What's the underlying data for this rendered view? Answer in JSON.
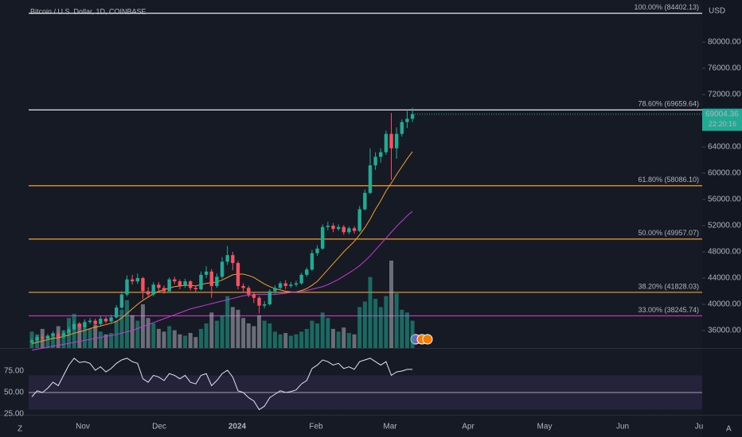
{
  "chart_data": {
    "type": "candlestick",
    "title": "Bitcoin / U.S. Dollar, 1D, COINBASE",
    "currency": "USD",
    "countdown": "22:20:16",
    "up_color": "#22ab94",
    "down_color": "#f7525f",
    "ylim": [
      33333,
      86424
    ],
    "yticks": [
      {
        "value": 80000,
        "label": "80000.00"
      },
      {
        "value": 76000,
        "label": "76000.00"
      },
      {
        "value": 72000,
        "label": "72000.00"
      },
      {
        "value": 64000,
        "label": "64000.00"
      },
      {
        "value": 60000,
        "label": "60000.00"
      },
      {
        "value": 56000,
        "label": "56000.00"
      },
      {
        "value": 52000,
        "label": "52000.00"
      },
      {
        "value": 48000,
        "label": "48000.00"
      },
      {
        "value": 44000,
        "label": "44000.00"
      },
      {
        "value": 40000,
        "label": "40000.00"
      },
      {
        "value": 36000,
        "label": "36000.00"
      }
    ],
    "xlabels": [
      "Nov",
      "Dec",
      "2024",
      "Feb",
      "Mar",
      "Apr",
      "May",
      "Jun",
      "Ju"
    ],
    "fib": [
      {
        "label": "100.00% (84402.13)",
        "value": 84402.13,
        "color": "#ffffff"
      },
      {
        "label": "78.60% (69659.64)",
        "value": 69659.64,
        "color": "#ffffff"
      },
      {
        "label": "61.80% (58086.10)",
        "value": 58086.1,
        "color": "#f5a02a"
      },
      {
        "label": "50.00% (49957.07)",
        "value": 49957.07,
        "color": "#f5a02a"
      },
      {
        "label": "38.20% (41828.03)",
        "value": 41828.03,
        "color": "#f5a02a"
      },
      {
        "label": "33.00% (38245.74)",
        "value": 38245.74,
        "color": "#b33bb3"
      }
    ],
    "ohlc": [
      [
        34200,
        34800,
        33900,
        34500
      ],
      [
        34500,
        35300,
        34200,
        35000
      ],
      [
        35000,
        35400,
        34500,
        34800
      ],
      [
        34800,
        35500,
        34500,
        35200
      ],
      [
        35200,
        35900,
        34900,
        35500
      ],
      [
        35500,
        35800,
        34700,
        35000
      ],
      [
        35000,
        36000,
        34800,
        35600
      ],
      [
        35600,
        36600,
        35400,
        36200
      ],
      [
        36200,
        37500,
        36000,
        37000
      ],
      [
        37000,
        37300,
        36100,
        36500
      ],
      [
        36500,
        37700,
        36200,
        37300
      ],
      [
        37300,
        37900,
        37000,
        37500
      ],
      [
        37500,
        37800,
        36600,
        37000
      ],
      [
        37000,
        38200,
        36800,
        37800
      ],
      [
        37800,
        38100,
        37100,
        37400
      ],
      [
        37400,
        38400,
        37200,
        38000
      ],
      [
        38000,
        39900,
        37800,
        39500
      ],
      [
        39500,
        42000,
        39300,
        41500
      ],
      [
        41500,
        44400,
        41200,
        43800
      ],
      [
        43800,
        44500,
        43000,
        43500
      ],
      [
        43500,
        44700,
        43100,
        44000
      ],
      [
        44000,
        44200,
        40800,
        42000
      ],
      [
        42000,
        42600,
        41000,
        41500
      ],
      [
        41500,
        43400,
        41200,
        43000
      ],
      [
        43000,
        43400,
        42100,
        42500
      ],
      [
        42500,
        42900,
        41600,
        42000
      ],
      [
        42000,
        44100,
        41800,
        43800
      ],
      [
        43800,
        44200,
        43100,
        43500
      ],
      [
        43500,
        43800,
        42300,
        42800
      ],
      [
        42800,
        43900,
        42500,
        43500
      ],
      [
        43500,
        43700,
        42100,
        42500
      ],
      [
        42500,
        42900,
        41900,
        42300
      ],
      [
        42300,
        45000,
        42100,
        44500
      ],
      [
        44500,
        45800,
        44000,
        45000
      ],
      [
        45000,
        45400,
        41000,
        42800
      ],
      [
        42800,
        44700,
        42500,
        44200
      ],
      [
        44200,
        47200,
        43900,
        46500
      ],
      [
        46500,
        48900,
        46000,
        47500
      ],
      [
        47500,
        48000,
        45200,
        46300
      ],
      [
        46300,
        46600,
        42300,
        42800
      ],
      [
        42800,
        43200,
        41800,
        42500
      ],
      [
        42500,
        42800,
        41100,
        41500
      ],
      [
        41500,
        41800,
        40200,
        41000
      ],
      [
        41000,
        41300,
        38600,
        39800
      ],
      [
        39800,
        40500,
        39400,
        40000
      ],
      [
        40000,
        42300,
        39800,
        42000
      ],
      [
        42000,
        42900,
        41600,
        42500
      ],
      [
        42500,
        43500,
        42200,
        43200
      ],
      [
        43200,
        43700,
        42300,
        42800
      ],
      [
        42800,
        43400,
        42500,
        43000
      ],
      [
        43000,
        43600,
        42700,
        43200
      ],
      [
        43200,
        44800,
        43000,
        44500
      ],
      [
        44500,
        45600,
        44200,
        45300
      ],
      [
        45300,
        48300,
        45100,
        47800
      ],
      [
        47800,
        49000,
        47400,
        48500
      ],
      [
        48500,
        52200,
        48300,
        51800
      ],
      [
        51800,
        52600,
        51300,
        52000
      ],
      [
        52000,
        52400,
        51000,
        51500
      ],
      [
        51500,
        52200,
        51200,
        51800
      ],
      [
        51800,
        52100,
        50600,
        51000
      ],
      [
        51000,
        51900,
        50700,
        51600
      ],
      [
        51600,
        51900,
        50800,
        51200
      ],
      [
        51200,
        55000,
        51000,
        54500
      ],
      [
        54500,
        57500,
        54300,
        57000
      ],
      [
        57000,
        63800,
        56800,
        61200
      ],
      [
        61200,
        63200,
        60500,
        62500
      ],
      [
        62500,
        63800,
        61600,
        63200
      ],
      [
        63200,
        66500,
        62800,
        66000
      ],
      [
        66000,
        69200,
        59000,
        63800
      ],
      [
        63800,
        67000,
        62200,
        66000
      ],
      [
        66000,
        68200,
        65600,
        67800
      ],
      [
        67800,
        69500,
        66900,
        68300
      ],
      [
        68300,
        70000,
        67800,
        69004.36
      ]
    ],
    "ma_fast": {
      "color": "#f5a02a",
      "values": [
        34000,
        34200,
        34400,
        34600,
        34800,
        34900,
        35100,
        35300,
        35600,
        35800,
        36000,
        36300,
        36500,
        36700,
        36900,
        37100,
        37400,
        37900,
        38600,
        39300,
        40000,
        40600,
        41100,
        41600,
        42000,
        42200,
        42500,
        42700,
        42800,
        42900,
        42900,
        42800,
        43000,
        43200,
        43300,
        43400,
        43700,
        44100,
        44500,
        44600,
        44600,
        44400,
        44100,
        43600,
        43100,
        42700,
        42400,
        42200,
        42000,
        41900,
        41900,
        42100,
        42400,
        42900,
        43500,
        44400,
        45300,
        46200,
        47100,
        48000,
        48800,
        49600,
        50600,
        51700,
        53000,
        54500,
        55800,
        57300,
        58500,
        59800,
        61000,
        62200,
        63300
      ]
    },
    "ma_slow": {
      "color": "#c43bd6",
      "values": [
        33000,
        33150,
        33300,
        33450,
        33600,
        33750,
        33900,
        34050,
        34200,
        34350,
        34500,
        34650,
        34800,
        34950,
        35100,
        35250,
        35400,
        35600,
        35800,
        36000,
        36300,
        36600,
        36900,
        37200,
        37500,
        37800,
        38100,
        38400,
        38700,
        39000,
        39300,
        39500,
        39700,
        39900,
        40100,
        40300,
        40500,
        40700,
        40900,
        41100,
        41300,
        41400,
        41500,
        41500,
        41500,
        41500,
        41500,
        41600,
        41700,
        41800,
        41900,
        42000,
        42100,
        42300,
        42500,
        42700,
        43000,
        43400,
        43800,
        44300,
        44800,
        45300,
        45900,
        46600,
        47400,
        48300,
        49200,
        50100,
        51000,
        51900,
        52700,
        53500,
        54200
      ]
    },
    "volume": [
      12,
      10,
      14,
      9,
      11,
      16,
      13,
      22,
      25,
      18,
      15,
      14,
      17,
      12,
      10,
      11,
      20,
      28,
      35,
      24,
      20,
      32,
      22,
      18,
      14,
      12,
      16,
      13,
      10,
      9,
      11,
      8,
      14,
      18,
      26,
      20,
      24,
      38,
      30,
      28,
      22,
      18,
      16,
      24,
      20,
      18,
      12,
      10,
      11,
      9,
      10,
      12,
      14,
      20,
      18,
      26,
      22,
      14,
      12,
      15,
      11,
      10,
      30,
      34,
      52,
      36,
      30,
      38,
      64,
      40,
      28,
      26,
      20
    ],
    "rsi": {
      "color": "#e0e3eb",
      "values": [
        45,
        52,
        50,
        55,
        62,
        58,
        70,
        82,
        90,
        85,
        86,
        84,
        76,
        80,
        74,
        78,
        84,
        88,
        90,
        86,
        84,
        66,
        62,
        70,
        68,
        64,
        72,
        70,
        66,
        70,
        62,
        60,
        70,
        72,
        58,
        64,
        72,
        76,
        68,
        52,
        50,
        44,
        40,
        30,
        34,
        44,
        48,
        52,
        50,
        51,
        53,
        60,
        64,
        78,
        82,
        88,
        86,
        82,
        84,
        78,
        80,
        77,
        86,
        88,
        90,
        86,
        82,
        86,
        70,
        74,
        75,
        77,
        77
      ],
      "ylim": [
        24,
        101
      ],
      "yticks": [
        {
          "value": 75,
          "label": "75.00"
        },
        {
          "value": 50,
          "label": "50.00"
        },
        {
          "value": 25,
          "label": "25.00"
        }
      ],
      "band": [
        30,
        70
      ]
    }
  }
}
